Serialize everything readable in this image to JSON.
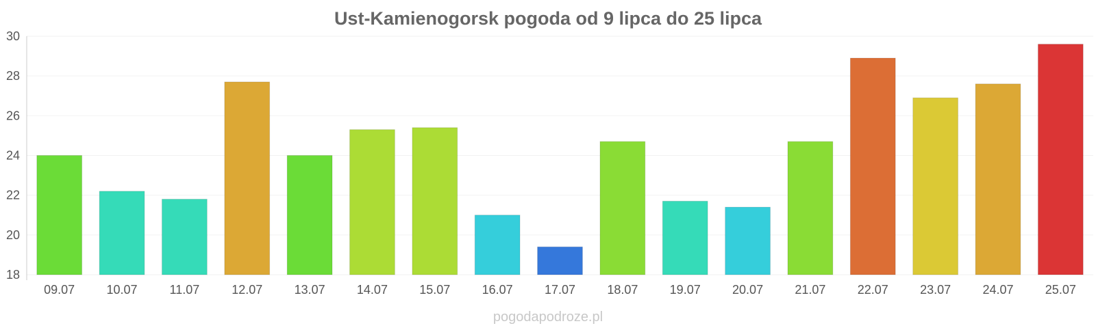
{
  "chart_data": {
    "type": "bar",
    "title": "Ust-Kamienogorsk pogoda od 9 lipca do 25 lipca",
    "xlabel": "",
    "ylabel": "",
    "categories": [
      "09.07",
      "10.07",
      "11.07",
      "12.07",
      "13.07",
      "14.07",
      "15.07",
      "16.07",
      "17.07",
      "18.07",
      "19.07",
      "20.07",
      "21.07",
      "22.07",
      "23.07",
      "24.07",
      "25.07"
    ],
    "values": [
      24.0,
      22.2,
      21.8,
      27.7,
      24.0,
      25.3,
      25.4,
      21.0,
      19.4,
      24.7,
      21.7,
      21.4,
      24.7,
      28.9,
      26.9,
      27.6,
      29.6
    ],
    "colors": [
      "#6bdc37",
      "#35dbb8",
      "#35dbb8",
      "#dca835",
      "#6bdc37",
      "#acdc35",
      "#acdc35",
      "#35cedb",
      "#3578db",
      "#8adc35",
      "#35dbb8",
      "#35cedb",
      "#8adc35",
      "#dc6e35",
      "#dbc935",
      "#dca835",
      "#db3535"
    ],
    "ylim": [
      18,
      30
    ],
    "yticks": [
      "18",
      "20",
      "22",
      "24",
      "26",
      "28",
      "30"
    ],
    "grid": true,
    "legend": "none"
  },
  "watermark": "pogodapodroze.pl"
}
